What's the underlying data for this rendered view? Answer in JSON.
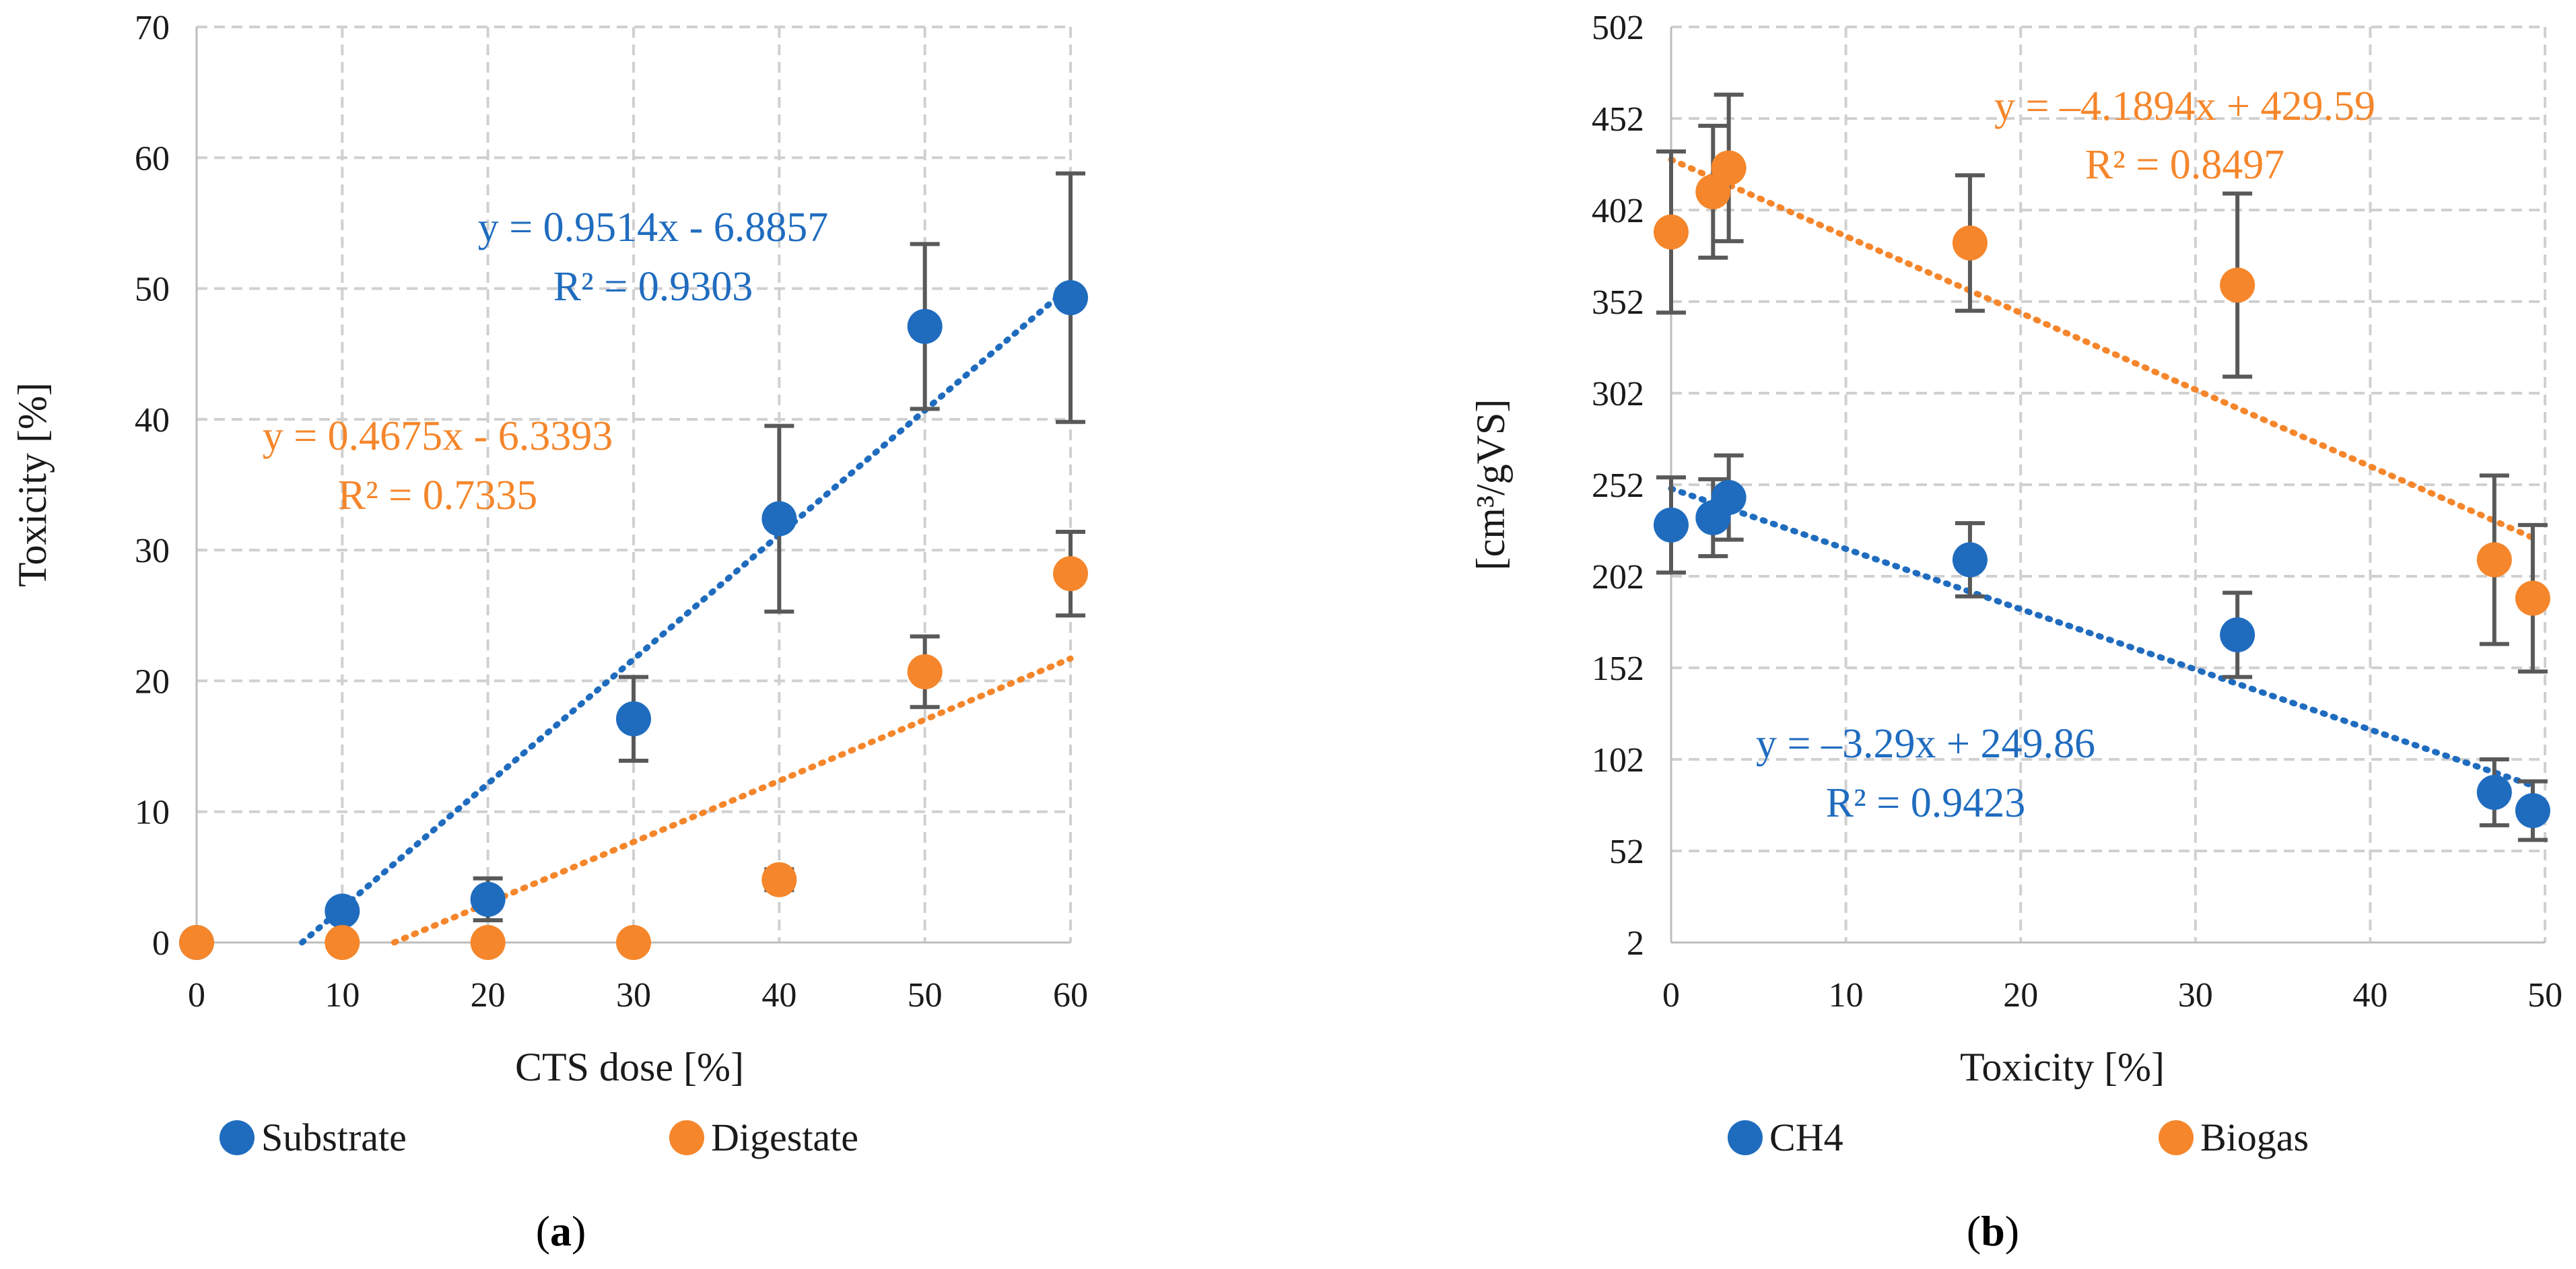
{
  "colors": {
    "blue": "#1f6cbf",
    "orange": "#f5862b",
    "grid": "#d0d0d0",
    "errbar": "#595959"
  },
  "chart_data": [
    {
      "panel": "(a)",
      "type": "scatter",
      "xlabel": "CTS dose [%]",
      "ylabel": "Toxicity [%]",
      "xlim": [
        0,
        60
      ],
      "ylim": [
        0,
        70
      ],
      "xticks": [
        0,
        10,
        20,
        30,
        40,
        50,
        60
      ],
      "yticks": [
        0,
        10,
        20,
        30,
        40,
        50,
        60,
        70
      ],
      "grid": true,
      "legend_position": "bottom",
      "series": [
        {
          "name": "Substrate",
          "color": "#1f6cbf",
          "x": [
            0,
            10,
            20,
            30,
            40,
            50,
            60
          ],
          "y": [
            0,
            2.4,
            3.3,
            17.1,
            32.4,
            47.1,
            49.3
          ],
          "err": [
            0,
            0,
            1.6,
            3.2,
            7.1,
            6.3,
            9.5
          ],
          "trendline": {
            "slope": 0.9514,
            "intercept": -6.8857,
            "equation": "y = 0.9514x - 6.8857",
            "r2": "R² = 0.9303"
          }
        },
        {
          "name": "Digestate",
          "color": "#f5862b",
          "x": [
            0,
            10,
            20,
            30,
            40,
            50,
            60
          ],
          "y": [
            0,
            0,
            0,
            0,
            4.8,
            20.7,
            28.2
          ],
          "err": [
            0,
            0,
            0,
            0,
            0.8,
            2.7,
            3.2
          ],
          "trendline": {
            "slope": 0.4675,
            "intercept": -6.3393,
            "equation": "y = 0.4675x - 6.3393",
            "r2": "R² = 0.7335"
          }
        }
      ]
    },
    {
      "panel": "(b)",
      "type": "scatter",
      "xlabel": "Toxicity [%]",
      "ylabel": "[cm³/gVS]",
      "xlim": [
        0,
        50
      ],
      "ylim": [
        2,
        502
      ],
      "xticks": [
        0,
        10,
        20,
        30,
        40,
        50
      ],
      "yticks": [
        2,
        52,
        102,
        152,
        202,
        252,
        302,
        352,
        402,
        452,
        502
      ],
      "grid": true,
      "legend_position": "bottom",
      "series": [
        {
          "name": "CH4",
          "color": "#1f6cbf",
          "x": [
            0,
            2.4,
            3.3,
            17.1,
            32.4,
            47.1,
            49.3
          ],
          "y": [
            230,
            234,
            245,
            211,
            170,
            84,
            74
          ],
          "err": [
            26,
            21,
            23,
            20,
            23,
            18,
            16
          ],
          "trendline": {
            "slope": -3.29,
            "intercept": 249.86,
            "equation": "y = –3.29x + 249.86",
            "r2": "R² = 0.9423"
          }
        },
        {
          "name": "Biogas",
          "color": "#f5862b",
          "x": [
            0,
            2.4,
            3.3,
            17.1,
            32.4,
            47.1,
            49.3
          ],
          "y": [
            390,
            412,
            425,
            384,
            361,
            211,
            190
          ],
          "err": [
            44,
            36,
            40,
            37,
            50,
            46,
            40
          ],
          "trendline": {
            "slope": -4.1894,
            "intercept": 429.59,
            "equation": "y = –4.1894x + 429.59",
            "r2": "R² = 0.8497"
          }
        }
      ]
    }
  ]
}
